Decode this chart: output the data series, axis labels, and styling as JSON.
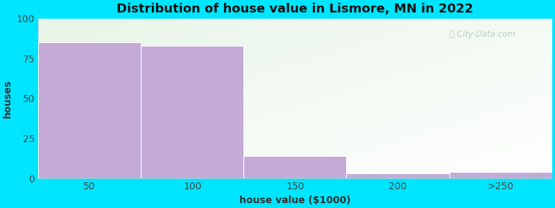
{
  "title": "Distribution of house value in Lismore, MN in 2022",
  "xlabel": "house value ($1000)",
  "ylabel": "houses",
  "categories": [
    "50",
    "100",
    "150",
    "200",
    ">250"
  ],
  "values": [
    85,
    83,
    14,
    3,
    4
  ],
  "bar_color": "#c5aad8",
  "bar_edge_color": "#c5aad8",
  "ylim": [
    0,
    100
  ],
  "yticks": [
    0,
    25,
    50,
    75,
    100
  ],
  "bg_outer": "#00e5ff",
  "title_fontsize": 13,
  "axis_label_fontsize": 10,
  "tick_fontsize": 10,
  "watermark_color": "#b0c8c0",
  "bar_width": 1.0,
  "xlim_left": 0,
  "xlim_right": 5
}
